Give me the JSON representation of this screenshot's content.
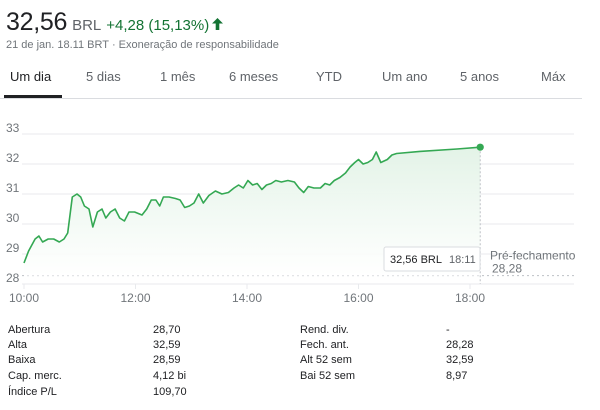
{
  "quote": {
    "price": "32,56",
    "currency": "BRL",
    "change": "+4,28 (15,13%)",
    "change_color": "#137333",
    "timestamp": "21 de jan. 18.11 BRT",
    "separator": "·",
    "disclaimer": "Exoneração de responsabilidade"
  },
  "tabs": [
    "Um dia",
    "5 dias",
    "1 mês",
    "6 meses",
    "YTD",
    "Um ano",
    "5 anos",
    "Máx"
  ],
  "active_tab": "Um dia",
  "colors": {
    "line": "#34a853",
    "fill_top": "#e3f3e7",
    "grid": "#e8eaed",
    "reference": "#bdc1c6",
    "axis_text": "#70757a"
  },
  "chart_data": {
    "type": "area",
    "x_unit": "time",
    "xlim": [
      "10:00",
      "18:00"
    ],
    "ylim": [
      28,
      33
    ],
    "yticks": [
      "33",
      "32",
      "31",
      "30",
      "29",
      "28"
    ],
    "xticks": [
      "10:00",
      "12:00",
      "14:00",
      "16:00",
      "18:00"
    ],
    "grid": true,
    "points": [
      [
        "10:00",
        28.7
      ],
      [
        "10:05",
        29.1
      ],
      [
        "10:12",
        29.5
      ],
      [
        "10:16",
        29.6
      ],
      [
        "10:20",
        29.4
      ],
      [
        "10:26",
        29.5
      ],
      [
        "10:32",
        29.5
      ],
      [
        "10:38",
        29.4
      ],
      [
        "10:43",
        29.5
      ],
      [
        "10:47",
        29.7
      ],
      [
        "10:52",
        30.9
      ],
      [
        "10:57",
        31.0
      ],
      [
        "11:01",
        30.9
      ],
      [
        "11:05",
        30.6
      ],
      [
        "11:10",
        30.5
      ],
      [
        "11:14",
        29.9
      ],
      [
        "11:19",
        30.4
      ],
      [
        "11:24",
        30.5
      ],
      [
        "11:28",
        30.2
      ],
      [
        "11:33",
        30.4
      ],
      [
        "11:38",
        30.5
      ],
      [
        "11:43",
        30.2
      ],
      [
        "11:48",
        30.1
      ],
      [
        "11:53",
        30.4
      ],
      [
        "11:59",
        30.4
      ],
      [
        "12:07",
        30.3
      ],
      [
        "12:12",
        30.5
      ],
      [
        "12:17",
        30.8
      ],
      [
        "12:22",
        30.8
      ],
      [
        "12:26",
        30.6
      ],
      [
        "12:30",
        30.9
      ],
      [
        "12:36",
        30.9
      ],
      [
        "12:43",
        30.85
      ],
      [
        "12:48",
        30.8
      ],
      [
        "12:53",
        30.55
      ],
      [
        "12:58",
        30.6
      ],
      [
        "13:03",
        30.7
      ],
      [
        "13:08",
        31.0
      ],
      [
        "13:13",
        30.7
      ],
      [
        "13:19",
        30.95
      ],
      [
        "13:26",
        31.1
      ],
      [
        "13:33",
        31.0
      ],
      [
        "13:40",
        31.05
      ],
      [
        "13:46",
        31.2
      ],
      [
        "13:51",
        31.3
      ],
      [
        "13:56",
        31.2
      ],
      [
        "14:01",
        31.45
      ],
      [
        "14:06",
        31.3
      ],
      [
        "14:11",
        31.35
      ],
      [
        "14:16",
        31.15
      ],
      [
        "14:21",
        31.3
      ],
      [
        "14:26",
        31.35
      ],
      [
        "14:31",
        31.45
      ],
      [
        "14:37",
        31.4
      ],
      [
        "14:44",
        31.45
      ],
      [
        "14:51",
        31.4
      ],
      [
        "14:56",
        31.2
      ],
      [
        "15:01",
        31.05
      ],
      [
        "15:06",
        31.25
      ],
      [
        "15:12",
        31.2
      ],
      [
        "15:19",
        31.2
      ],
      [
        "15:24",
        31.35
      ],
      [
        "15:29",
        31.3
      ],
      [
        "15:34",
        31.45
      ],
      [
        "15:40",
        31.55
      ],
      [
        "15:46",
        31.7
      ],
      [
        "15:51",
        31.9
      ],
      [
        "15:56",
        32.05
      ],
      [
        "16:00",
        32.15
      ],
      [
        "16:05",
        32.0
      ],
      [
        "16:10",
        32.05
      ],
      [
        "16:15",
        32.15
      ],
      [
        "16:19",
        32.4
      ],
      [
        "16:24",
        32.05
      ],
      [
        "16:31",
        32.15
      ],
      [
        "16:36",
        32.3
      ],
      [
        "16:41",
        32.35
      ],
      [
        "17:06",
        32.42
      ],
      [
        "17:46",
        32.5
      ],
      [
        "18:11",
        32.56
      ]
    ],
    "reference": {
      "label": "Pré-fechamento",
      "value": "28,28"
    },
    "tooltip": {
      "price": "32,56 BRL",
      "time": "18:11"
    }
  },
  "stats": [
    {
      "label": "Abertura",
      "value": "28,70"
    },
    {
      "label": "Alta",
      "value": "32,59"
    },
    {
      "label": "Baixa",
      "value": "28,59"
    },
    {
      "label": "Cap. merc.",
      "value": "4,12 bi"
    },
    {
      "label": "Índice P/L",
      "value": "109,70"
    },
    {
      "label": "Rend. div.",
      "value": "-"
    },
    {
      "label": "Fech. ant.",
      "value": "28,28"
    },
    {
      "label": "Alt 52 sem",
      "value": "32,59"
    },
    {
      "label": "Bai 52 sem",
      "value": "8,97"
    }
  ]
}
